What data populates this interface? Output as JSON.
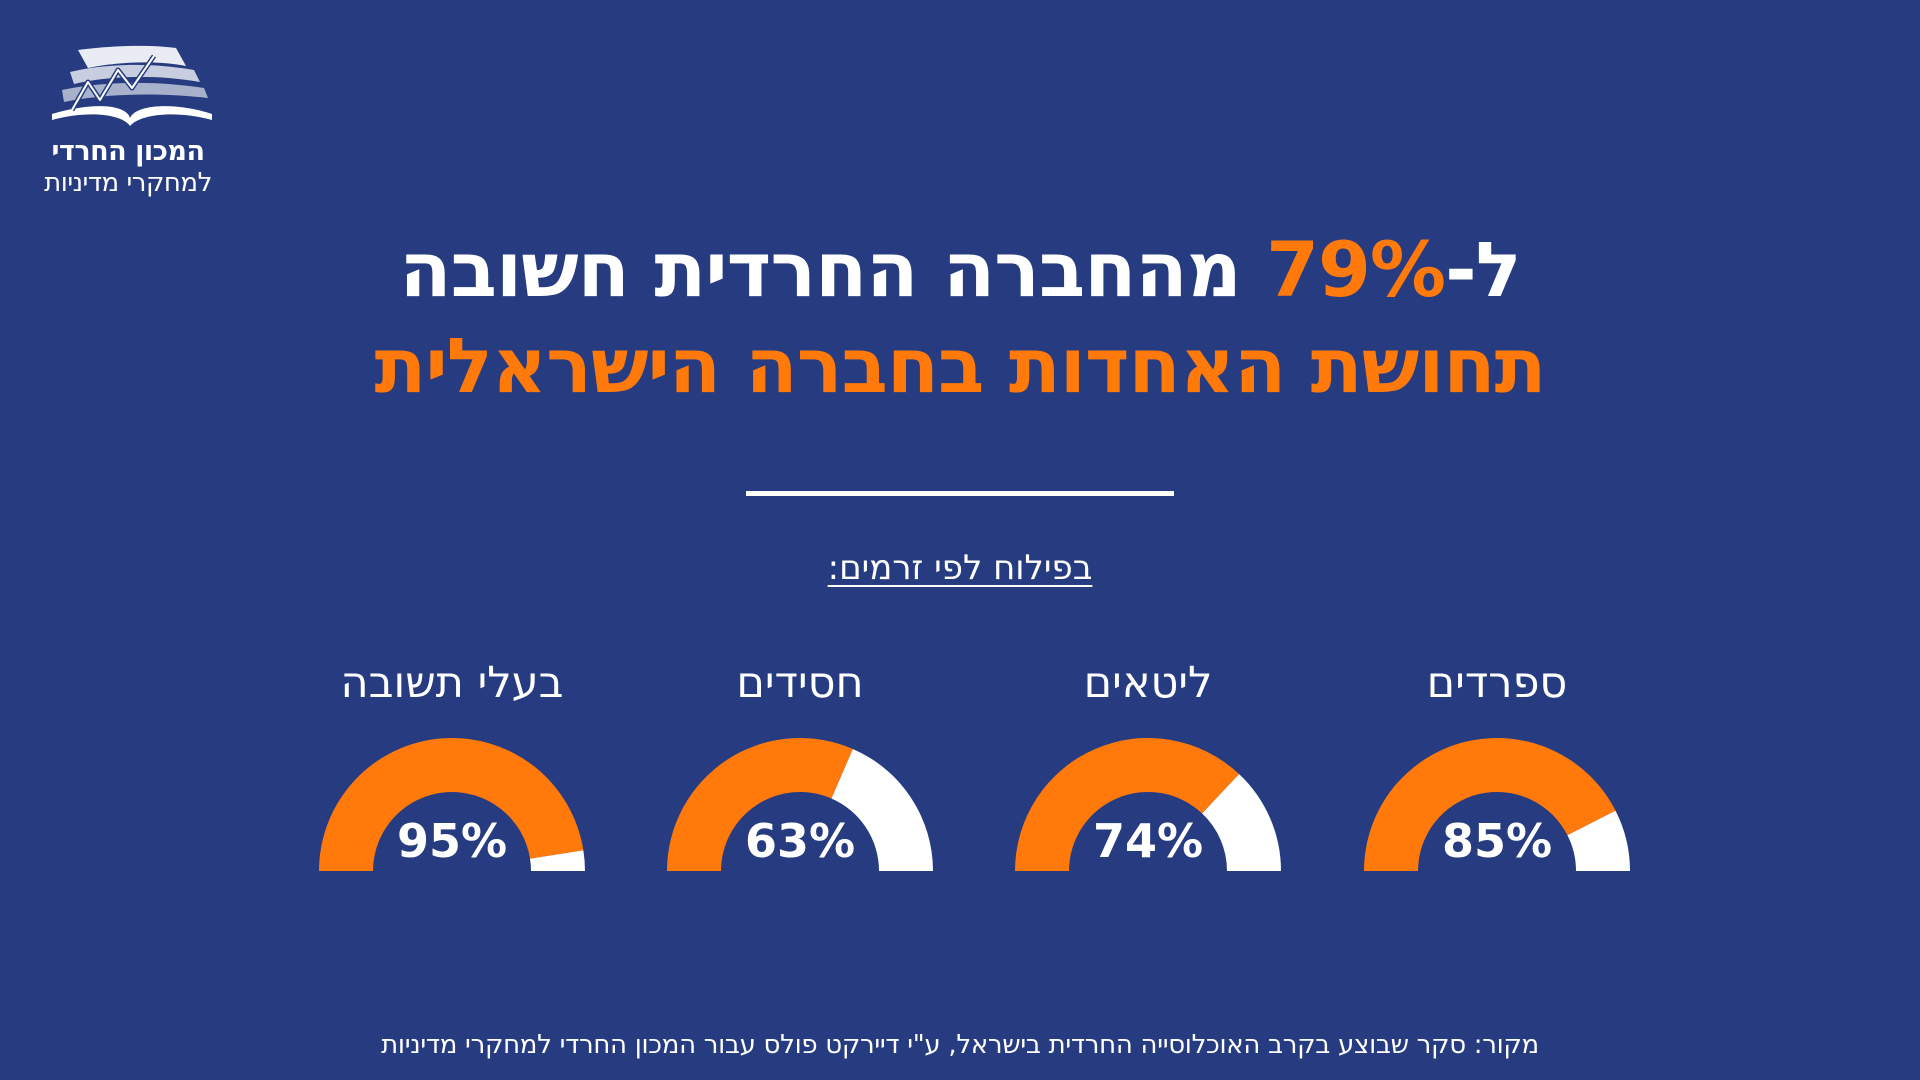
{
  "logo": {
    "name": "המכון החרדי",
    "subtitle": "למחקרי מדיניות",
    "icon": "book-chart-icon"
  },
  "headline": {
    "line1_prefix": "ל-",
    "line1_accent": "79%",
    "line1_suffix": " מהחברה החרדית חשובה",
    "line2": "תחושת האחדות בחברה הישראלית"
  },
  "subtitle": "בפילוח לפי זרמים:",
  "source": "מקור: סקר שבוצע בקרב האוכלוסייה החרדית בישראל, ע\"י דיירקט פולס עבור המכון החרדי למחקרי מדיניות",
  "colors": {
    "background": "#273c80",
    "accent": "#ff7a0a",
    "remainder": "#ffffff"
  },
  "chart_data": {
    "type": "gauge",
    "unit": "%",
    "range": [
      0,
      100
    ],
    "categories": [
      "ספרדים",
      "ליטאים",
      "חסידים",
      "בעלי תשובה"
    ],
    "values": [
      85,
      74,
      63,
      95
    ],
    "value_labels": [
      "85%",
      "74%",
      "63%",
      "95%"
    ]
  }
}
